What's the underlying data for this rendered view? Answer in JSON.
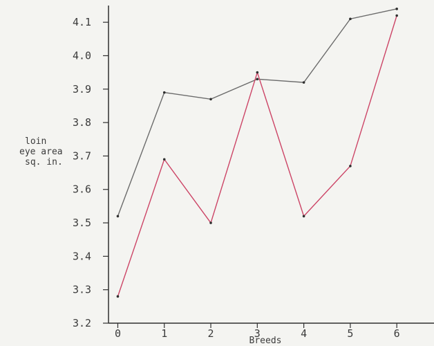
{
  "chart_data": {
    "type": "line",
    "title": "",
    "xlabel": "Breeds",
    "ylabel": [
      "loin",
      "eye area",
      "sq. in."
    ],
    "x": [
      0,
      1,
      2,
      3,
      4,
      5,
      6
    ],
    "xlim": [
      -0.2,
      6.8
    ],
    "ylim": [
      3.2,
      4.15
    ],
    "yticks": [
      "3.2",
      "3.3",
      "3.4",
      "3.5",
      "3.6",
      "3.7",
      "3.8",
      "3.9",
      "4.0",
      "4.1"
    ],
    "xticks": [
      "0",
      "1",
      "2",
      "3",
      "4",
      "5",
      "6"
    ],
    "grid": false,
    "legend": "none",
    "series": [
      {
        "color": "#6b6b6b",
        "values": [
          3.52,
          3.89,
          3.87,
          3.93,
          3.92,
          4.11,
          4.14
        ]
      },
      {
        "color": "#cc4466",
        "values": [
          3.28,
          3.69,
          3.5,
          3.95,
          3.52,
          3.67,
          4.12
        ]
      }
    ]
  }
}
